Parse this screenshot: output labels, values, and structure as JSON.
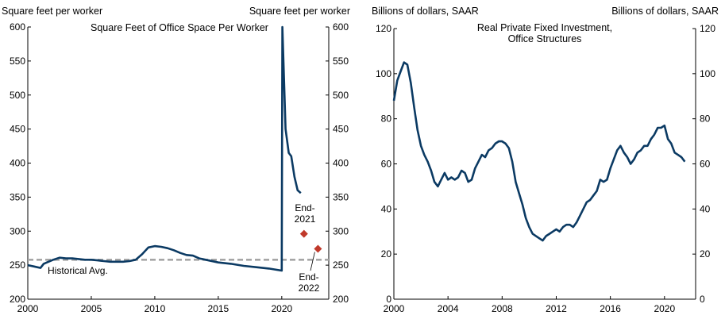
{
  "colors": {
    "series": "#0b3a63",
    "avg": "#a6a6a6",
    "marker": "#c0392b"
  },
  "chart_data": [
    {
      "type": "line",
      "title": "Square Feet of Office Space Per Worker",
      "ylabel_left": "Square feet per worker",
      "ylabel_right": "Square feet per worker",
      "xlim": [
        2000,
        2023.7
      ],
      "ylim": [
        200,
        600
      ],
      "xticks": [
        2000,
        2005,
        2010,
        2015,
        2020
      ],
      "yticks": [
        200,
        250,
        300,
        350,
        400,
        450,
        500,
        550,
        600
      ],
      "grid": false,
      "series": [
        {
          "style": "solid",
          "x": [
            2000,
            2000.5,
            2001,
            2001.25,
            2001.5,
            2002,
            2002.5,
            2003,
            2003.5,
            2004,
            2004.5,
            2005,
            2005.5,
            2006,
            2006.5,
            2007,
            2007.5,
            2008,
            2008.5,
            2009,
            2009.5,
            2010,
            2010.5,
            2011,
            2011.5,
            2012,
            2012.5,
            2013,
            2013.5,
            2014,
            2015,
            2016,
            2017,
            2018,
            2019,
            2020,
            2020.05,
            2020.3,
            2020.55,
            2020.75,
            2021,
            2021.25,
            2021.5
          ],
          "y": [
            250,
            248,
            246,
            252,
            254,
            258,
            261,
            260,
            260,
            259,
            258,
            258,
            257,
            256,
            255,
            255,
            255,
            256,
            258,
            266,
            276,
            278,
            277,
            275,
            272,
            268,
            265,
            264,
            260,
            258,
            254,
            252,
            249,
            247,
            245,
            242,
            600,
            450,
            415,
            410,
            380,
            360,
            356
          ]
        },
        {
          "name": "Historical Avg.",
          "style": "dashed",
          "x": [
            2000,
            2023.7
          ],
          "y": [
            258,
            258
          ]
        }
      ],
      "markers": [
        {
          "label": "End-2021",
          "x": 2021.75,
          "y": 296
        },
        {
          "label": "End-2022",
          "x": 2022.85,
          "y": 274
        }
      ]
    },
    {
      "type": "line",
      "title": "Real Private Fixed Investment, Office Structures",
      "ylabel_left": "Billions of dollars, SAAR",
      "ylabel_right": "Billions of dollars, SAAR",
      "xlim": [
        2000,
        2022.3
      ],
      "ylim": [
        0,
        120
      ],
      "xticks": [
        2000,
        2004,
        2008,
        2012,
        2016,
        2020
      ],
      "yticks": [
        0,
        20,
        40,
        60,
        80,
        100,
        120
      ],
      "grid": false,
      "series": [
        {
          "x": [
            2000,
            2000.25,
            2000.5,
            2000.75,
            2001,
            2001.25,
            2001.5,
            2001.75,
            2002,
            2002.25,
            2002.5,
            2002.75,
            2003,
            2003.25,
            2003.5,
            2003.75,
            2004,
            2004.25,
            2004.5,
            2004.75,
            2005,
            2005.25,
            2005.5,
            2005.75,
            2006,
            2006.25,
            2006.5,
            2006.75,
            2007,
            2007.25,
            2007.5,
            2007.75,
            2008,
            2008.25,
            2008.5,
            2008.75,
            2009,
            2009.25,
            2009.5,
            2009.75,
            2010,
            2010.25,
            2010.5,
            2010.75,
            2011,
            2011.25,
            2011.5,
            2011.75,
            2012,
            2012.25,
            2012.5,
            2012.75,
            2013,
            2013.25,
            2013.5,
            2013.75,
            2014,
            2014.25,
            2014.5,
            2014.75,
            2015,
            2015.25,
            2015.5,
            2015.75,
            2016,
            2016.25,
            2016.5,
            2016.75,
            2017,
            2017.25,
            2017.5,
            2017.75,
            2018,
            2018.25,
            2018.5,
            2018.75,
            2019,
            2019.25,
            2019.5,
            2019.75,
            2020,
            2020.25,
            2020.5,
            2020.75,
            2021,
            2021.25,
            2021.5
          ],
          "y": [
            88,
            97,
            101,
            105,
            104,
            96,
            85,
            75,
            68,
            64,
            61,
            57,
            52,
            50,
            53,
            56,
            53,
            54,
            53,
            54,
            57,
            56,
            52,
            53,
            58,
            61,
            64,
            63,
            66,
            67,
            69,
            70,
            70,
            69,
            67,
            61,
            52,
            47,
            42,
            36,
            32,
            29,
            28,
            27,
            26,
            28,
            29,
            30,
            31,
            30,
            32,
            33,
            33,
            32,
            34,
            37,
            40,
            43,
            44,
            46,
            48,
            53,
            52,
            53,
            58,
            62,
            66,
            68,
            65,
            63,
            60,
            62,
            65,
            66,
            68,
            68,
            71,
            73,
            76,
            76,
            77,
            71,
            69,
            65,
            64,
            63,
            61
          ]
        }
      ]
    }
  ],
  "annotations": {
    "hist_avg": "Historical Avg.",
    "end2021_l1": "End-",
    "end2021_l2": "2021",
    "end2022_l1": "End-",
    "end2022_l2": "2022"
  }
}
